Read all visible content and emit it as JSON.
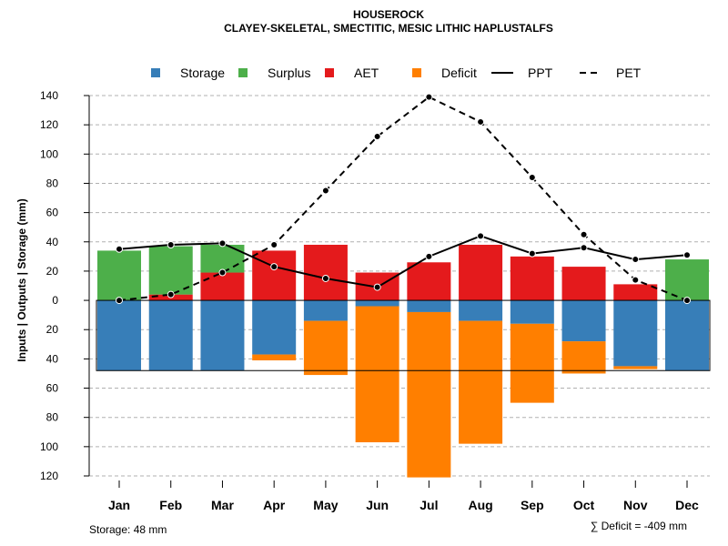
{
  "chart_data": {
    "type": "bar",
    "title": "HOUSEROCK",
    "subtitle": "CLAYEY-SKELETAL, SMECTITIC, MESIC LITHIC HAPLUSTALFS",
    "ylabel": "Inputs | Outputs | Storage     (mm)",
    "ylim": [
      -120,
      140
    ],
    "yticks": [
      140,
      120,
      100,
      80,
      60,
      40,
      20,
      0,
      -20,
      -40,
      -60,
      -80,
      -100,
      -120
    ],
    "ytick_labels": [
      "140",
      "120",
      "100",
      "80",
      "60",
      "40",
      "20",
      "0",
      "20",
      "40",
      "60",
      "80",
      "100",
      "120"
    ],
    "grid": true,
    "categories": [
      "Jan",
      "Feb",
      "Mar",
      "Apr",
      "May",
      "Jun",
      "Jul",
      "Aug",
      "Sep",
      "Oct",
      "Nov",
      "Dec"
    ],
    "colors": {
      "storage": "#377EB8",
      "surplus": "#4DAF4A",
      "aet": "#E41A1C",
      "deficit": "#FF7F00",
      "line": "#000000",
      "grid": "#b0b0b0"
    },
    "series": [
      {
        "name": "Storage",
        "key": "storage",
        "values": [
          48,
          48,
          48,
          37,
          14,
          4,
          8,
          14,
          16,
          28,
          45,
          48
        ]
      },
      {
        "name": "Surplus",
        "key": "surplus",
        "values": [
          34,
          33,
          19,
          0,
          0,
          0,
          0,
          0,
          0,
          0,
          0,
          28
        ]
      },
      {
        "name": "AET",
        "key": "aet",
        "values": [
          0,
          4,
          19,
          34,
          38,
          19,
          26,
          38,
          30,
          23,
          11,
          0
        ]
      },
      {
        "name": "Deficit",
        "key": "deficit",
        "values": [
          0,
          0,
          0,
          4,
          37,
          93,
          113,
          84,
          54,
          22,
          2,
          0
        ]
      },
      {
        "name": "PPT",
        "key": "ppt",
        "values": [
          35,
          38,
          39,
          23,
          15,
          9,
          30,
          44,
          32,
          36,
          28,
          31
        ]
      },
      {
        "name": "PET",
        "key": "pet",
        "values": [
          0,
          4,
          19,
          38,
          75,
          112,
          139,
          122,
          84,
          45,
          14,
          0
        ]
      }
    ],
    "storage_capacity": 48,
    "legend": [
      "Storage",
      "Surplus",
      "AET",
      "Deficit",
      "PPT",
      "PET"
    ],
    "legend_position": "top",
    "footer_left": "Storage: 48 mm",
    "footer_right": "∑ Deficit = -409 mm"
  }
}
